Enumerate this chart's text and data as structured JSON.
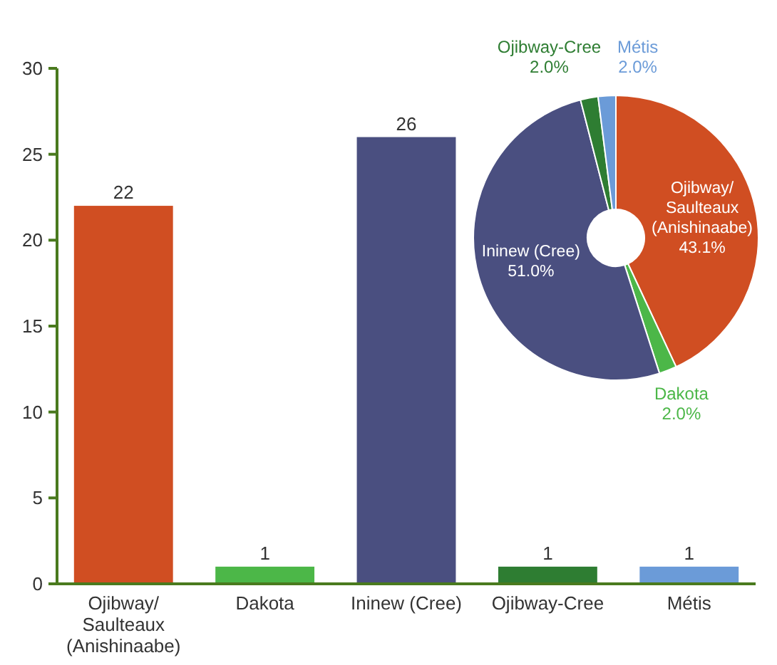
{
  "chart_data": [
    {
      "type": "bar",
      "categories": [
        "Ojibway/Saulteaux (Anishinaabe)",
        "Dakota",
        "Ininew (Cree)",
        "Ojibway-Cree",
        "Métis"
      ],
      "values": [
        22,
        1,
        26,
        1,
        1
      ],
      "colors": [
        "#d04e22",
        "#4cb748",
        "#4a4f80",
        "#2e7d32",
        "#6b9bd8"
      ],
      "data_labels": true,
      "ylim": [
        0,
        30
      ],
      "yticks": [
        0,
        5,
        10,
        15,
        20,
        25,
        30
      ]
    },
    {
      "type": "donut",
      "categories": [
        "Ojibway/Saulteaux (Anishinaabe)",
        "Dakota",
        "Ininew (Cree)",
        "Ojibway-Cree",
        "Métis"
      ],
      "values": [
        43.1,
        2.0,
        51.0,
        2.0,
        2.0
      ],
      "colors": [
        "#d04e22",
        "#4cb748",
        "#4a4f80",
        "#2e7d32",
        "#6b9bd8"
      ],
      "value_labels": [
        "43.1%",
        "2.0%",
        "51.0%",
        "2.0%",
        "2.0%"
      ]
    }
  ]
}
